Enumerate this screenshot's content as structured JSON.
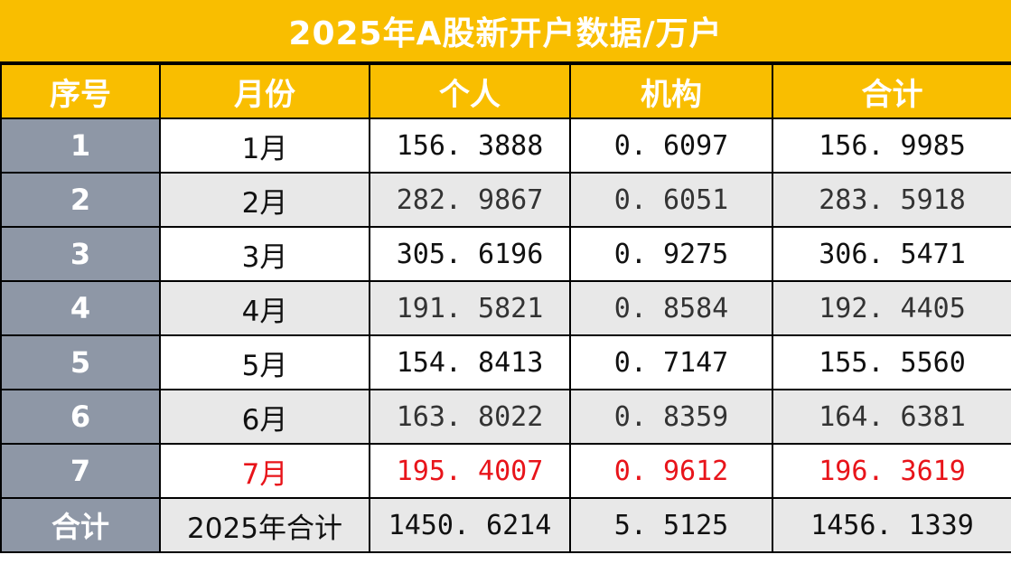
{
  "title": "2025年A股新开户数据/万户",
  "headers": [
    "序号",
    "月份",
    "个人",
    "机构",
    "合计"
  ],
  "rows": [
    {
      "idx": "1",
      "month": "1月",
      "personal": "156. 3888",
      "institution": "0. 6097",
      "total": "156. 9985"
    },
    {
      "idx": "2",
      "month": "2月",
      "personal": "282. 9867",
      "institution": "0. 6051",
      "total": "283. 5918"
    },
    {
      "idx": "3",
      "month": "3月",
      "personal": "305. 6196",
      "institution": "0. 9275",
      "total": "306. 5471"
    },
    {
      "idx": "4",
      "month": "4月",
      "personal": "191. 5821",
      "institution": "0. 8584",
      "total": "192. 4405"
    },
    {
      "idx": "5",
      "month": "5月",
      "personal": "154. 8413",
      "institution": "0. 7147",
      "total": "155. 5560"
    },
    {
      "idx": "6",
      "month": "6月",
      "personal": "163. 8022",
      "institution": "0. 8359",
      "total": "164. 6381"
    },
    {
      "idx": "7",
      "month": "7月",
      "personal": "195. 4007",
      "institution": "0. 9612",
      "total": "196. 3619"
    }
  ],
  "summary": {
    "idx": "合计",
    "month": "2025年合计",
    "personal": "1450. 6214",
    "institution": "5. 5125",
    "total": "1456. 1339"
  },
  "colors": {
    "header": "#f9be00",
    "index_column": "#8e97a6",
    "highlight": "#e8141a",
    "stripe": "#e8e8e8"
  }
}
